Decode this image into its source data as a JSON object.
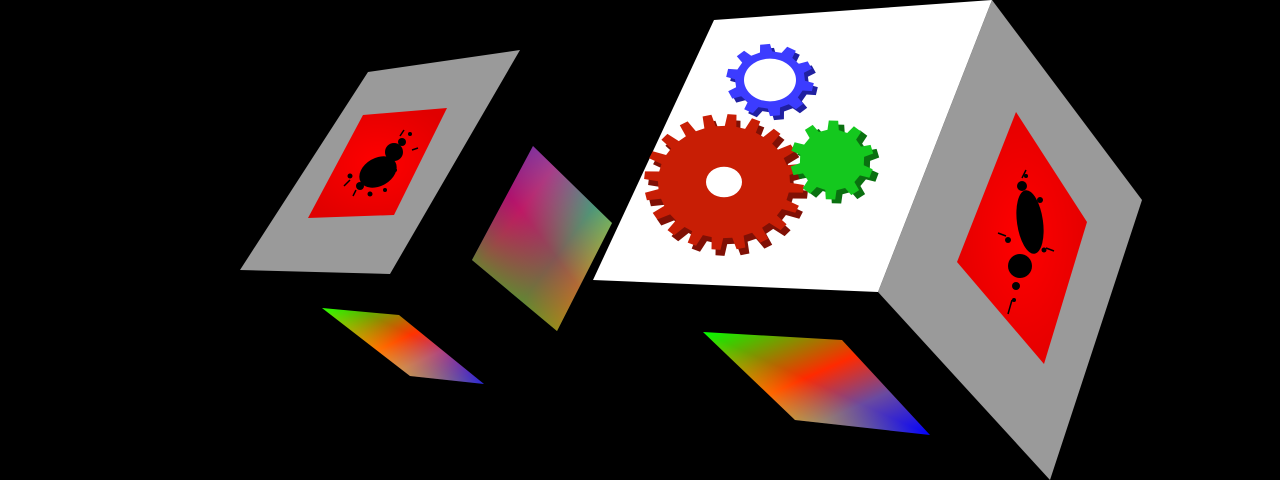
{
  "scene": {
    "background_color": "#000000",
    "frame_color": "#9a9a9a",
    "fractal_fill_color": "#ff0000",
    "fractal_set_color": "#000000",
    "gradient_colors": [
      "#ff0000",
      "#00ff00",
      "#0000ff",
      "#ffff00"
    ],
    "gear_colors": {
      "large": "#c81e05",
      "small_top": "#3c3cff",
      "small_right": "#14c81e"
    },
    "objects": [
      {
        "name": "left-cube",
        "faces": [
          "gray-frame-with-mandelbrot",
          "rgb-gradient",
          "rgb-gradient-bottom"
        ]
      },
      {
        "name": "right-cube",
        "faces": [
          "white-with-gears",
          "gray-frame-with-mandelbrot",
          "rgb-gradient-bottom"
        ]
      }
    ]
  }
}
